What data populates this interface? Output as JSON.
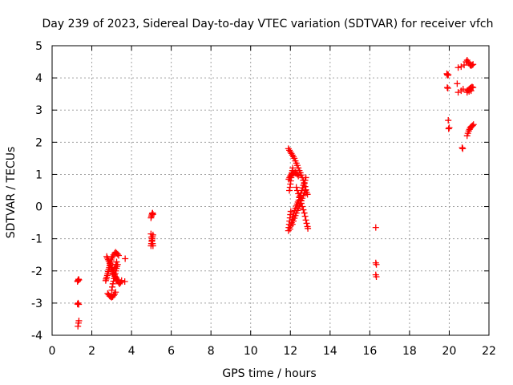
{
  "chart_data": {
    "type": "scatter",
    "title": "Day 239 of 2023, Sidereal Day-to-day VTEC variation (SDTVAR) for receiver vfch",
    "xlabel": "GPS time / hours",
    "ylabel": "SDTVAR / TECUs",
    "xlim": [
      0,
      22
    ],
    "ylim": [
      -4,
      5
    ],
    "xticks": [
      "0",
      "2",
      "4",
      "6",
      "8",
      "10",
      "12",
      "14",
      "16",
      "18",
      "20",
      "22"
    ],
    "yticks": [
      "-4",
      "-3",
      "-2",
      "-1",
      "0",
      "1",
      "2",
      "3",
      "4",
      "5"
    ],
    "grid": true,
    "marker": "+",
    "color": "#ff0000",
    "series": [
      {
        "name": "vfch",
        "points": [
          [
            1.28,
            -2.33
          ],
          [
            1.3,
            -2.3
          ],
          [
            1.33,
            -2.26
          ],
          [
            1.35,
            -2.28
          ],
          [
            1.28,
            -3.03
          ],
          [
            1.31,
            -3.0
          ],
          [
            1.34,
            -3.04
          ],
          [
            1.3,
            -3.72
          ],
          [
            1.33,
            -3.62
          ],
          [
            1.35,
            -3.55
          ],
          [
            2.7,
            -2.3
          ],
          [
            2.72,
            -2.25
          ],
          [
            2.75,
            -2.2
          ],
          [
            2.78,
            -2.14
          ],
          [
            2.8,
            -2.08
          ],
          [
            2.83,
            -2.02
          ],
          [
            2.85,
            -1.96
          ],
          [
            2.88,
            -1.9
          ],
          [
            2.9,
            -1.84
          ],
          [
            2.93,
            -1.78
          ],
          [
            2.95,
            -1.72
          ],
          [
            2.98,
            -1.66
          ],
          [
            2.75,
            -1.55
          ],
          [
            2.78,
            -1.6
          ],
          [
            2.82,
            -1.65
          ],
          [
            2.86,
            -1.7
          ],
          [
            2.9,
            -1.76
          ],
          [
            2.94,
            -1.82
          ],
          [
            2.98,
            -1.88
          ],
          [
            3.02,
            -1.94
          ],
          [
            3.06,
            -2.0
          ],
          [
            3.1,
            -2.06
          ],
          [
            3.14,
            -2.12
          ],
          [
            3.18,
            -2.18
          ],
          [
            3.22,
            -2.24
          ],
          [
            3.26,
            -2.3
          ],
          [
            2.8,
            -2.7
          ],
          [
            2.85,
            -2.74
          ],
          [
            2.9,
            -2.78
          ],
          [
            2.95,
            -2.8
          ],
          [
            3.0,
            -2.82
          ],
          [
            3.05,
            -2.8
          ],
          [
            3.1,
            -2.76
          ],
          [
            3.15,
            -2.72
          ],
          [
            3.2,
            -2.66
          ],
          [
            3.0,
            -2.6
          ],
          [
            3.03,
            -2.5
          ],
          [
            3.06,
            -2.4
          ],
          [
            3.09,
            -2.32
          ],
          [
            3.12,
            -2.24
          ],
          [
            3.15,
            -2.16
          ],
          [
            3.18,
            -2.08
          ],
          [
            3.21,
            -2.0
          ],
          [
            3.24,
            -1.92
          ],
          [
            3.27,
            -1.86
          ],
          [
            3.3,
            -1.8
          ],
          [
            3.0,
            -1.6
          ],
          [
            3.05,
            -1.55
          ],
          [
            3.1,
            -1.5
          ],
          [
            3.15,
            -1.45
          ],
          [
            3.2,
            -1.42
          ],
          [
            3.25,
            -1.45
          ],
          [
            3.3,
            -1.48
          ],
          [
            3.35,
            -1.52
          ],
          [
            3.05,
            -2.1
          ],
          [
            3.1,
            -2.0
          ],
          [
            3.15,
            -1.9
          ],
          [
            3.2,
            -1.8
          ],
          [
            3.25,
            -1.72
          ],
          [
            3.22,
            -2.2
          ],
          [
            3.26,
            -2.26
          ],
          [
            3.3,
            -2.3
          ],
          [
            3.35,
            -2.36
          ],
          [
            3.4,
            -2.4
          ],
          [
            3.45,
            -2.36
          ],
          [
            3.5,
            -2.3
          ],
          [
            3.68,
            -1.62
          ],
          [
            3.66,
            -2.33
          ],
          [
            4.98,
            -1.22
          ],
          [
            5.0,
            -1.15
          ],
          [
            5.02,
            -1.08
          ],
          [
            5.04,
            -1.0
          ],
          [
            5.06,
            -0.94
          ],
          [
            5.08,
            -0.88
          ],
          [
            4.98,
            -0.85
          ],
          [
            5.0,
            -0.95
          ],
          [
            5.03,
            -1.05
          ],
          [
            5.06,
            -1.15
          ],
          [
            5.08,
            -1.22
          ],
          [
            4.98,
            -0.35
          ],
          [
            5.0,
            -0.3
          ],
          [
            5.02,
            -0.26
          ],
          [
            5.04,
            -0.22
          ],
          [
            5.06,
            -0.2
          ],
          [
            5.08,
            -0.24
          ],
          [
            11.9,
            -0.75
          ],
          [
            11.92,
            -0.65
          ],
          [
            11.94,
            -0.55
          ],
          [
            11.96,
            -0.45
          ],
          [
            11.98,
            -0.35
          ],
          [
            12.0,
            -0.25
          ],
          [
            12.02,
            -0.15
          ],
          [
            11.98,
            -0.7
          ],
          [
            12.02,
            -0.6
          ],
          [
            12.06,
            -0.5
          ],
          [
            12.1,
            -0.4
          ],
          [
            12.14,
            -0.3
          ],
          [
            12.18,
            -0.2
          ],
          [
            12.22,
            -0.12
          ],
          [
            12.26,
            -0.05
          ],
          [
            12.3,
            0.02
          ],
          [
            12.34,
            0.08
          ],
          [
            12.38,
            0.14
          ],
          [
            12.42,
            0.2
          ],
          [
            12.46,
            0.28
          ],
          [
            12.5,
            0.35
          ],
          [
            12.54,
            0.42
          ],
          [
            12.58,
            0.5
          ],
          [
            12.62,
            0.58
          ],
          [
            12.66,
            0.66
          ],
          [
            12.7,
            0.74
          ],
          [
            12.74,
            0.82
          ],
          [
            12.78,
            0.9
          ],
          [
            12.1,
            -0.55
          ],
          [
            12.15,
            -0.45
          ],
          [
            12.2,
            -0.36
          ],
          [
            12.25,
            -0.28
          ],
          [
            12.3,
            -0.2
          ],
          [
            12.35,
            -0.12
          ],
          [
            12.4,
            -0.05
          ],
          [
            12.45,
            0.02
          ],
          [
            12.5,
            0.1
          ],
          [
            12.55,
            0.18
          ],
          [
            12.6,
            0.26
          ],
          [
            12.65,
            0.34
          ],
          [
            12.7,
            0.42
          ],
          [
            12.75,
            0.5
          ],
          [
            11.95,
            0.5
          ],
          [
            11.98,
            0.6
          ],
          [
            12.0,
            0.7
          ],
          [
            12.02,
            0.8
          ],
          [
            12.04,
            0.9
          ],
          [
            12.06,
            0.98
          ],
          [
            12.08,
            1.05
          ],
          [
            12.1,
            1.12
          ],
          [
            12.12,
            1.2
          ],
          [
            11.9,
            1.8
          ],
          [
            11.95,
            1.75
          ],
          [
            12.0,
            1.7
          ],
          [
            12.05,
            1.65
          ],
          [
            12.1,
            1.6
          ],
          [
            12.15,
            1.55
          ],
          [
            12.2,
            1.5
          ],
          [
            12.25,
            1.42
          ],
          [
            12.3,
            1.35
          ],
          [
            12.35,
            1.28
          ],
          [
            12.4,
            1.2
          ],
          [
            12.45,
            1.12
          ],
          [
            12.5,
            1.05
          ],
          [
            12.55,
            0.98
          ],
          [
            12.6,
            0.9
          ],
          [
            12.65,
            0.82
          ],
          [
            12.7,
            0.72
          ],
          [
            12.74,
            0.62
          ],
          [
            12.78,
            0.52
          ],
          [
            12.82,
            0.44
          ],
          [
            12.86,
            0.38
          ],
          [
            11.92,
            0.85
          ],
          [
            11.96,
            0.9
          ],
          [
            12.0,
            0.95
          ],
          [
            12.05,
            1.0
          ],
          [
            12.1,
            1.02
          ],
          [
            12.15,
            1.04
          ],
          [
            12.2,
            1.05
          ],
          [
            12.25,
            1.06
          ],
          [
            12.3,
            1.05
          ],
          [
            12.35,
            1.0
          ],
          [
            12.4,
            0.95
          ],
          [
            12.3,
            0.6
          ],
          [
            12.35,
            0.5
          ],
          [
            12.4,
            0.4
          ],
          [
            12.45,
            0.3
          ],
          [
            12.5,
            0.2
          ],
          [
            12.55,
            0.1
          ],
          [
            12.6,
            0.0
          ],
          [
            12.65,
            -0.1
          ],
          [
            12.7,
            -0.2
          ],
          [
            12.74,
            -0.3
          ],
          [
            12.78,
            -0.42
          ],
          [
            12.82,
            -0.52
          ],
          [
            12.86,
            -0.62
          ],
          [
            12.88,
            -0.68
          ],
          [
            16.3,
            -0.65
          ],
          [
            16.3,
            -1.75
          ],
          [
            16.33,
            -1.8
          ],
          [
            16.3,
            -2.12
          ],
          [
            16.33,
            -2.18
          ],
          [
            19.88,
            4.13
          ],
          [
            19.9,
            4.1
          ],
          [
            19.93,
            4.08
          ],
          [
            19.95,
            4.1
          ],
          [
            19.9,
            3.7
          ],
          [
            19.93,
            3.68
          ],
          [
            19.95,
            2.68
          ],
          [
            19.97,
            2.42
          ],
          [
            20.0,
            2.45
          ],
          [
            20.45,
            4.32
          ],
          [
            20.6,
            4.35
          ],
          [
            20.75,
            4.4
          ],
          [
            20.85,
            4.5
          ],
          [
            20.4,
            3.82
          ],
          [
            20.45,
            3.55
          ],
          [
            20.6,
            3.6
          ],
          [
            20.7,
            3.65
          ],
          [
            20.65,
            1.83
          ],
          [
            20.68,
            1.8
          ],
          [
            20.9,
            4.55
          ],
          [
            20.95,
            4.5
          ],
          [
            21.0,
            4.45
          ],
          [
            21.05,
            4.4
          ],
          [
            21.1,
            4.38
          ],
          [
            21.15,
            4.4
          ],
          [
            21.2,
            4.42
          ],
          [
            20.9,
            3.6
          ],
          [
            20.95,
            3.62
          ],
          [
            21.0,
            3.65
          ],
          [
            21.05,
            3.68
          ],
          [
            21.1,
            3.7
          ],
          [
            21.15,
            3.72
          ],
          [
            21.2,
            3.7
          ],
          [
            20.9,
            3.55
          ],
          [
            21.0,
            3.58
          ],
          [
            21.1,
            3.6
          ],
          [
            20.9,
            2.2
          ],
          [
            20.94,
            2.28
          ],
          [
            20.98,
            2.35
          ],
          [
            21.02,
            2.4
          ],
          [
            21.06,
            2.45
          ],
          [
            21.1,
            2.48
          ],
          [
            21.14,
            2.5
          ],
          [
            21.18,
            2.52
          ],
          [
            21.22,
            2.55
          ]
        ]
      }
    ]
  }
}
